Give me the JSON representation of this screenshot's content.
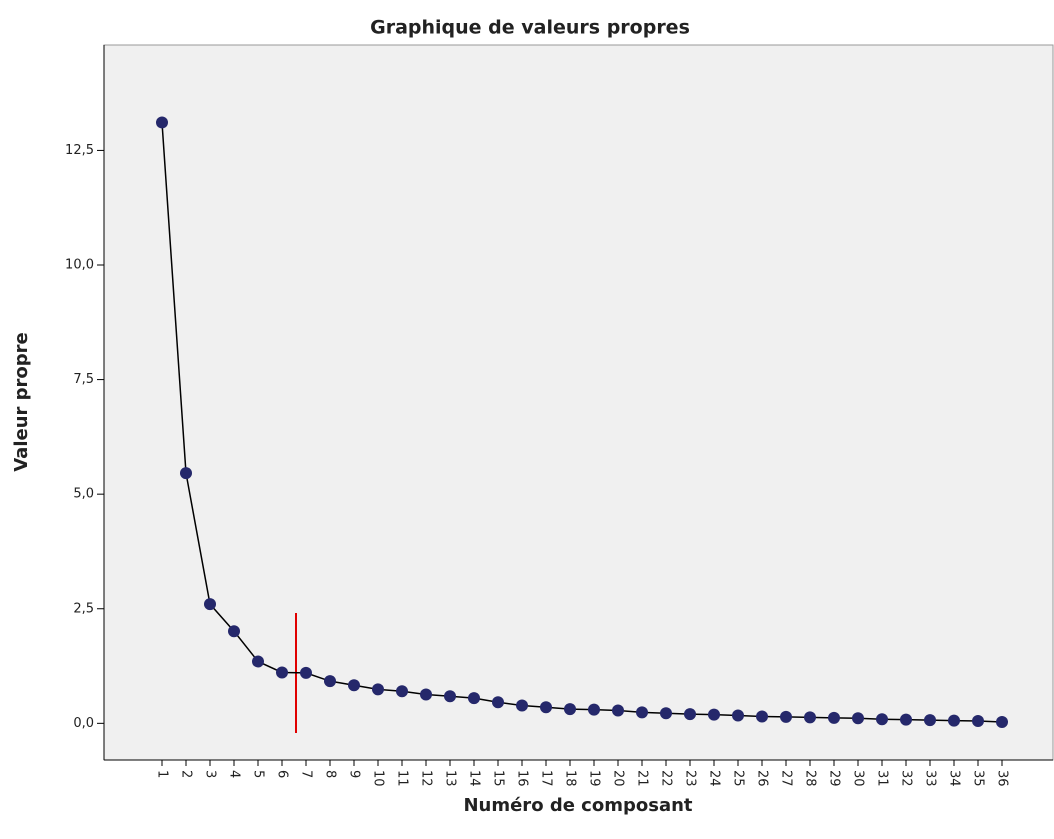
{
  "chart_data": {
    "type": "line",
    "title": "Graphique de valeurs propres",
    "x_label": "Numéro de composant",
    "y_label": "Valeur propre",
    "categories": [
      "1",
      "2",
      "3",
      "4",
      "5",
      "6",
      "7",
      "8",
      "9",
      "10",
      "11",
      "12",
      "13",
      "14",
      "15",
      "16",
      "17",
      "18",
      "19",
      "20",
      "21",
      "22",
      "23",
      "24",
      "25",
      "26",
      "27",
      "28",
      "29",
      "30",
      "31",
      "32",
      "33",
      "34",
      "35",
      "36"
    ],
    "series": [
      {
        "name": "Valeur propre",
        "color": "#25286b",
        "values": [
          13.11,
          5.46,
          2.6,
          2.01,
          1.35,
          1.11,
          1.1,
          0.92,
          0.83,
          0.74,
          0.7,
          0.63,
          0.59,
          0.55,
          0.46,
          0.39,
          0.35,
          0.31,
          0.3,
          0.28,
          0.24,
          0.22,
          0.2,
          0.19,
          0.17,
          0.15,
          0.14,
          0.13,
          0.12,
          0.11,
          0.09,
          0.08,
          0.07,
          0.06,
          0.05,
          0.03
        ]
      }
    ],
    "ylim": [
      -0.8,
      14.8
    ],
    "yticks": [
      {
        "value": 0,
        "label": "0,0"
      },
      {
        "value": 2.5,
        "label": "2,5"
      },
      {
        "value": 5,
        "label": "5,0"
      },
      {
        "value": 7.5,
        "label": "7,5"
      },
      {
        "value": 10,
        "label": "10,0"
      },
      {
        "value": 12.5,
        "label": "12,5"
      }
    ],
    "grid": false
  }
}
